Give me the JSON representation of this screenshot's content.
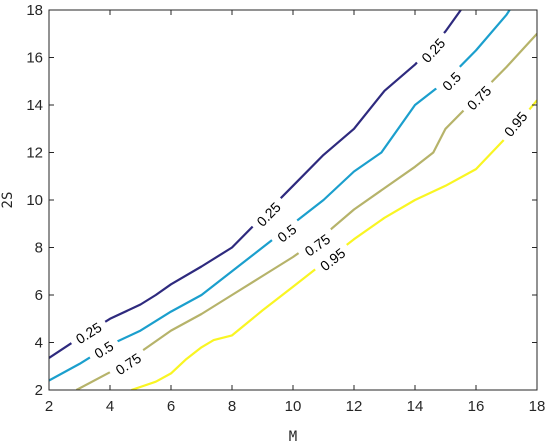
{
  "chart_data": {
    "type": "line",
    "subtype": "contour",
    "xlabel": "M",
    "ylabel": "2S",
    "xlim": [
      2,
      18
    ],
    "ylim": [
      2,
      18
    ],
    "xticks": [
      2,
      4,
      6,
      8,
      10,
      12,
      14,
      16,
      18
    ],
    "yticks": [
      2,
      4,
      6,
      8,
      10,
      12,
      14,
      16,
      18
    ],
    "grid": false,
    "series": [
      {
        "name": "0.25",
        "color": "#2e2a7e",
        "x": [
          2,
          3,
          4,
          5,
          5.5,
          6,
          7,
          8,
          9,
          10,
          11,
          12,
          13,
          14,
          15,
          15.5
        ],
        "y": [
          3.35,
          4.2,
          5.0,
          5.6,
          6.0,
          6.45,
          7.2,
          8.0,
          9.3,
          10.6,
          11.9,
          13.0,
          14.6,
          15.7,
          17.1,
          18.0
        ],
        "labels": [
          {
            "x": 3.3,
            "y": 4.4
          },
          {
            "x": 9.2,
            "y": 9.4
          },
          {
            "x": 14.6,
            "y": 16.3
          }
        ]
      },
      {
        "name": "0.5",
        "color": "#1b9fcd",
        "x": [
          2,
          3,
          4,
          5,
          6,
          7,
          8,
          9,
          10,
          11,
          12,
          12.9,
          14,
          15,
          16,
          17,
          17.1
        ],
        "y": [
          2.4,
          3.1,
          3.9,
          4.5,
          5.3,
          6.0,
          7.0,
          8.0,
          9.0,
          10.0,
          11.2,
          12.0,
          14.0,
          15.0,
          16.3,
          17.8,
          18.0
        ],
        "labels": [
          {
            "x": 3.8,
            "y": 3.7
          },
          {
            "x": 9.8,
            "y": 8.6
          },
          {
            "x": 15.2,
            "y": 15.0
          }
        ]
      },
      {
        "name": "0.75",
        "color": "#b6b36a",
        "x": [
          2.9,
          4,
          5,
          6,
          7,
          8,
          9,
          10,
          11,
          12,
          13,
          14,
          14.6,
          15,
          16,
          17,
          18
        ],
        "y": [
          2.0,
          2.75,
          3.6,
          4.5,
          5.2,
          6.0,
          6.8,
          7.6,
          8.5,
          9.6,
          10.5,
          11.4,
          12.0,
          13.0,
          14.3,
          15.6,
          17.0
        ],
        "labels": [
          {
            "x": 4.6,
            "y": 3.1
          },
          {
            "x": 10.8,
            "y": 8.1
          },
          {
            "x": 16.1,
            "y": 14.3
          }
        ]
      },
      {
        "name": "0.95",
        "color": "#f9f523",
        "x": [
          4.7,
          5.5,
          6,
          6.5,
          7,
          7.4,
          8,
          9,
          10,
          11,
          12,
          13,
          14,
          15,
          16,
          17,
          18
        ],
        "y": [
          2.0,
          2.35,
          2.7,
          3.3,
          3.8,
          4.1,
          4.3,
          5.35,
          6.35,
          7.35,
          8.35,
          9.25,
          10.0,
          10.6,
          11.3,
          12.65,
          14.2
        ],
        "labels": [
          {
            "x": 11.3,
            "y": 7.5
          },
          {
            "x": 17.3,
            "y": 13.2
          }
        ]
      }
    ]
  }
}
